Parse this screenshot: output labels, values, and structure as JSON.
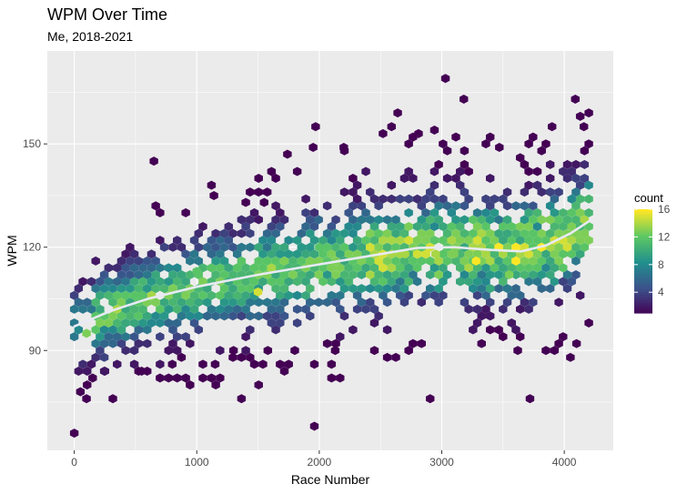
{
  "chart_data": {
    "type": "heatmap",
    "subtype": "hexbin",
    "title": "WPM Over Time",
    "subtitle": "Me, 2018-2021",
    "xlabel": "Race Number",
    "ylabel": "WPM",
    "xlim": [
      -220,
      4400
    ],
    "ylim": [
      61,
      177
    ],
    "x_ticks": [
      0,
      1000,
      2000,
      3000,
      4000
    ],
    "y_ticks": [
      90,
      120,
      150
    ],
    "grid": true,
    "legend": {
      "title": "count",
      "position": "right",
      "range": [
        1,
        16
      ],
      "ticks": [
        4,
        8,
        12,
        16
      ]
    },
    "color_scale": [
      "#440154",
      "#3b528b",
      "#21908d",
      "#5dc863",
      "#fde725"
    ],
    "background_color": "#ebebeb",
    "trend_color": "#e8eaf6",
    "trend": [
      {
        "x": 0,
        "y": 97
      },
      {
        "x": 300,
        "y": 101.5
      },
      {
        "x": 600,
        "y": 105
      },
      {
        "x": 1000,
        "y": 108.5
      },
      {
        "x": 1500,
        "y": 112
      },
      {
        "x": 2000,
        "y": 115
      },
      {
        "x": 2500,
        "y": 118
      },
      {
        "x": 2800,
        "y": 119.8
      },
      {
        "x": 3100,
        "y": 120
      },
      {
        "x": 3400,
        "y": 119.2
      },
      {
        "x": 3650,
        "y": 118.8
      },
      {
        "x": 3850,
        "y": 120.5
      },
      {
        "x": 4050,
        "y": 124
      },
      {
        "x": 4200,
        "y": 127.5
      }
    ],
    "bins_mid": [
      {
        "x": 100,
        "y": 95,
        "count": 13
      },
      {
        "x": 1000,
        "y": 113,
        "count": 12
      },
      {
        "x": 1500,
        "y": 107,
        "count": 15
      },
      {
        "x": 2700,
        "y": 118,
        "count": 14
      },
      {
        "x": 2950,
        "y": 118,
        "count": 14
      },
      {
        "x": 3100,
        "y": 118,
        "count": 13
      },
      {
        "x": 3280,
        "y": 116,
        "count": 16
      },
      {
        "x": 3550,
        "y": 112,
        "count": 13
      },
      {
        "x": 2000,
        "y": 120,
        "count": 12
      },
      {
        "x": 550,
        "y": 106,
        "count": 12
      }
    ],
    "bins_sparse": [
      {
        "x": 0,
        "y": 66,
        "count": 1
      },
      {
        "x": 50,
        "y": 78,
        "count": 1
      },
      {
        "x": 100,
        "y": 76,
        "count": 1
      },
      {
        "x": 1960,
        "y": 68,
        "count": 1
      },
      {
        "x": 3720,
        "y": 76,
        "count": 1
      },
      {
        "x": 3030,
        "y": 169,
        "count": 1
      },
      {
        "x": 3180,
        "y": 163,
        "count": 1
      },
      {
        "x": 4090,
        "y": 163,
        "count": 1
      },
      {
        "x": 2640,
        "y": 159,
        "count": 1
      },
      {
        "x": 1970,
        "y": 155,
        "count": 1
      },
      {
        "x": 2590,
        "y": 155,
        "count": 1
      },
      {
        "x": 3900,
        "y": 155,
        "count": 1
      },
      {
        "x": 4200,
        "y": 159,
        "count": 1
      },
      {
        "x": 2520,
        "y": 153,
        "count": 1
      },
      {
        "x": 2810,
        "y": 153,
        "count": 1
      },
      {
        "x": 4160,
        "y": 155,
        "count": 1
      },
      {
        "x": 650,
        "y": 145,
        "count": 1
      },
      {
        "x": 1950,
        "y": 149,
        "count": 1
      },
      {
        "x": 1140,
        "y": 135,
        "count": 1
      },
      {
        "x": 1550,
        "y": 133,
        "count": 1
      },
      {
        "x": 1400,
        "y": 133,
        "count": 1
      },
      {
        "x": 1580,
        "y": 90,
        "count": 1
      },
      {
        "x": 2130,
        "y": 90,
        "count": 1
      },
      {
        "x": 3620,
        "y": 90,
        "count": 1
      },
      {
        "x": 4100,
        "y": 92,
        "count": 1
      },
      {
        "x": 4050,
        "y": 88,
        "count": 1
      },
      {
        "x": 550,
        "y": 84,
        "count": 1
      },
      {
        "x": 800,
        "y": 86,
        "count": 1
      },
      {
        "x": 1150,
        "y": 86,
        "count": 1
      },
      {
        "x": 1300,
        "y": 90,
        "count": 1
      },
      {
        "x": 1800,
        "y": 90,
        "count": 1
      },
      {
        "x": 150,
        "y": 82,
        "count": 1
      },
      {
        "x": 250,
        "y": 84,
        "count": 2
      },
      {
        "x": 1740,
        "y": 147,
        "count": 1
      },
      {
        "x": 2200,
        "y": 149,
        "count": 1
      },
      {
        "x": 3470,
        "y": 149,
        "count": 1
      }
    ]
  }
}
